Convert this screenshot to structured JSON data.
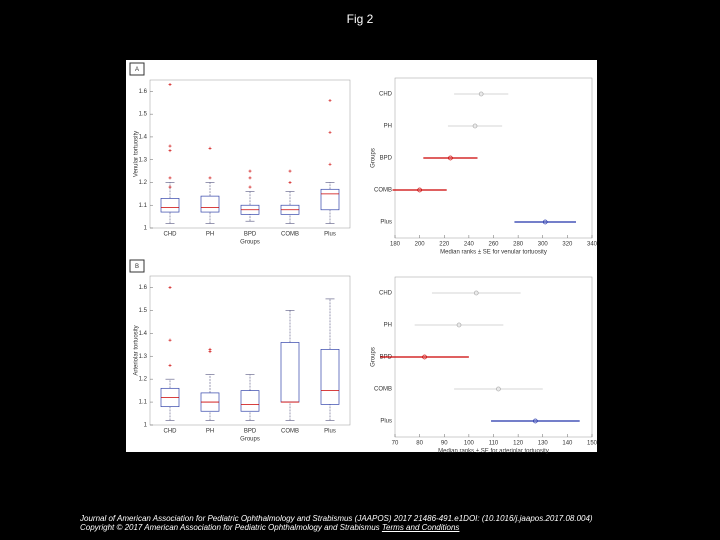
{
  "title": "Fig 2",
  "figure": {
    "panels": [
      {
        "label": "A",
        "boxplot": {
          "ylabel": "Venular tortuosity",
          "xlabel": "Groups",
          "categories": [
            "CHD",
            "PH",
            "BPD",
            "COMB",
            "Plus"
          ],
          "ylim": [
            1,
            1.65
          ],
          "yticks": [
            1,
            1.1,
            1.2,
            1.3,
            1.4,
            1.5,
            1.6
          ],
          "boxes": [
            {
              "whisker_low": 1.02,
              "q1": 1.07,
              "median": 1.09,
              "q3": 1.13,
              "whisker_high": 1.2,
              "outliers": [
                1.63,
                1.36,
                1.34,
                1.22,
                1.18
              ]
            },
            {
              "whisker_low": 1.02,
              "q1": 1.07,
              "median": 1.09,
              "q3": 1.14,
              "whisker_high": 1.2,
              "outliers": [
                1.35,
                1.22
              ]
            },
            {
              "whisker_low": 1.03,
              "q1": 1.06,
              "median": 1.08,
              "q3": 1.1,
              "whisker_high": 1.16,
              "outliers": [
                1.25,
                1.22,
                1.18
              ]
            },
            {
              "whisker_low": 1.02,
              "q1": 1.06,
              "median": 1.08,
              "q3": 1.1,
              "whisker_high": 1.16,
              "outliers": [
                1.25,
                1.2
              ]
            },
            {
              "whisker_low": 1.02,
              "q1": 1.08,
              "median": 1.15,
              "q3": 1.17,
              "whisker_high": 1.2,
              "outliers": [
                1.56,
                1.42,
                1.28
              ]
            }
          ]
        },
        "dotplot": {
          "ylabel": "Groups",
          "xlabel": "Median ranks ± SE for venular tortuosity",
          "categories": [
            "CHD",
            "PH",
            "BPD",
            "COMB",
            "Plus"
          ],
          "xlim": [
            180,
            340
          ],
          "xticks": [
            180,
            200,
            220,
            240,
            260,
            280,
            300,
            320,
            340
          ],
          "points": [
            {
              "value": 250,
              "se": 22,
              "color": "#aaaaaa"
            },
            {
              "value": 245,
              "se": 22,
              "color": "#aaaaaa"
            },
            {
              "value": 225,
              "se": 22,
              "color": "#cc0000"
            },
            {
              "value": 200,
              "se": 22,
              "color": "#cc0000"
            },
            {
              "value": 302,
              "se": 25,
              "color": "#2233aa"
            }
          ]
        }
      },
      {
        "label": "B",
        "boxplot": {
          "ylabel": "Arteriolar tortuosity",
          "xlabel": "Groups",
          "categories": [
            "CHD",
            "PH",
            "BPD",
            "COMB",
            "Plus"
          ],
          "ylim": [
            1,
            1.65
          ],
          "yticks": [
            1,
            1.1,
            1.2,
            1.3,
            1.4,
            1.5,
            1.6
          ],
          "boxes": [
            {
              "whisker_low": 1.02,
              "q1": 1.08,
              "median": 1.12,
              "q3": 1.16,
              "whisker_high": 1.2,
              "outliers": [
                1.6,
                1.37,
                1.26
              ]
            },
            {
              "whisker_low": 1.02,
              "q1": 1.06,
              "median": 1.1,
              "q3": 1.14,
              "whisker_high": 1.22,
              "outliers": [
                1.33,
                1.32
              ]
            },
            {
              "whisker_low": 1.02,
              "q1": 1.06,
              "median": 1.09,
              "q3": 1.15,
              "whisker_high": 1.22,
              "outliers": []
            },
            {
              "whisker_low": 1.02,
              "q1": 1.1,
              "median": 1.1,
              "q3": 1.36,
              "whisker_high": 1.5,
              "outliers": []
            },
            {
              "whisker_low": 1.02,
              "q1": 1.09,
              "median": 1.15,
              "q3": 1.33,
              "whisker_high": 1.55,
              "outliers": []
            }
          ]
        },
        "dotplot": {
          "ylabel": "Groups",
          "xlabel": "Median ranks ± SE for arteriolar tortuosity",
          "categories": [
            "CHD",
            "PH",
            "BPD",
            "COMB",
            "Plus"
          ],
          "xlim": [
            70,
            150
          ],
          "xticks": [
            70,
            80,
            90,
            100,
            110,
            120,
            130,
            140,
            150
          ],
          "points": [
            {
              "value": 103,
              "se": 18,
              "color": "#aaaaaa"
            },
            {
              "value": 96,
              "se": 18,
              "color": "#aaaaaa"
            },
            {
              "value": 82,
              "se": 18,
              "color": "#cc0000"
            },
            {
              "value": 112,
              "se": 18,
              "color": "#aaaaaa"
            },
            {
              "value": 127,
              "se": 18,
              "color": "#2233aa"
            }
          ]
        }
      }
    ]
  },
  "footer": {
    "citation": "Journal of American Association for Pediatric Ophthalmology and Strabismus (JAAPOS) 2017 21486-491.e1DOI: (10.1016/j.jaapos.2017.08.004)",
    "copyright": "Copyright © 2017 American Association for Pediatric Ophthalmology and Strabismus",
    "link": "Terms and Conditions"
  }
}
